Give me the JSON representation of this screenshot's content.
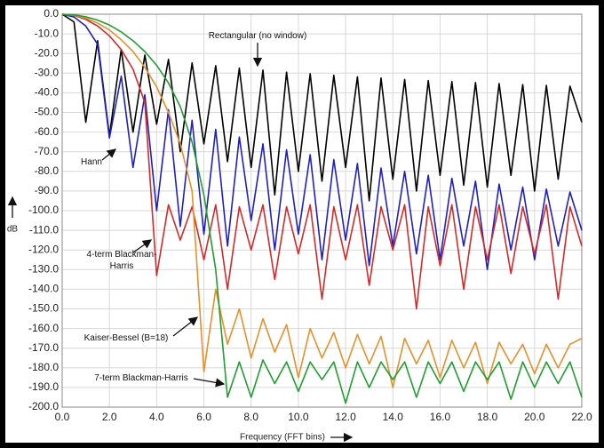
{
  "chart_data": {
    "type": "line",
    "xlabel": "Frequency (FFT bins)",
    "ylabel": "dB",
    "x": [
      0,
      0.5,
      1,
      1.5,
      2,
      2.5,
      3,
      3.5,
      4,
      4.5,
      5,
      5.5,
      6,
      6.5,
      7,
      7.5,
      8,
      8.5,
      9,
      9.5,
      10,
      10.5,
      11,
      11.5,
      12,
      12.5,
      13,
      13.5,
      14,
      14.5,
      15,
      15.5,
      16,
      16.5,
      17,
      17.5,
      18,
      18.5,
      19,
      19.5,
      20,
      20.5,
      21,
      21.5,
      22
    ],
    "series": [
      {
        "name": "Rectangular (no window)",
        "color": "#000000",
        "values": [
          0,
          -3.9,
          -55,
          -13.5,
          -62,
          -17.9,
          -60,
          -20.8,
          -56,
          -23.0,
          -70,
          -24.8,
          -66,
          -26.2,
          -75,
          -27.4,
          -78,
          -28.5,
          -92,
          -29.5,
          -80,
          -30.3,
          -85,
          -31.1,
          -78,
          -31.9,
          -95,
          -32.5,
          -84,
          -33.2,
          -90,
          -33.8,
          -82,
          -34.3,
          -87,
          -34.8,
          -88,
          -35.3,
          -82,
          -35.8,
          -90,
          -36.2,
          -84,
          -36.6,
          -55
        ]
      },
      {
        "name": "Hann",
        "color": "#2020c0",
        "values": [
          0,
          -1.4,
          -6,
          -15.3,
          -63,
          -31.5,
          -78,
          -41,
          -100,
          -48.6,
          -108,
          -54,
          -112,
          -58.6,
          -118,
          -62.5,
          -105,
          -66,
          -120,
          -69,
          -112,
          -71.5,
          -125,
          -74,
          -115,
          -76,
          -128,
          -78.3,
          -118,
          -80,
          -122,
          -82,
          -125,
          -83.5,
          -118,
          -85,
          -130,
          -86.5,
          -120,
          -88,
          -125,
          -89,
          -118,
          -90.5,
          -110
        ]
      },
      {
        "name": "4-term Blackman-Harris",
        "color": "#d42a2a",
        "values": [
          0,
          -0.6,
          -2.6,
          -6,
          -11,
          -18,
          -28,
          -45,
          -133,
          -97,
          -115,
          -98,
          -125,
          -97,
          -140,
          -98,
          -120,
          -97,
          -135,
          -98,
          -122,
          -97,
          -145,
          -98,
          -125,
          -97,
          -138,
          -98,
          -120,
          -97,
          -150,
          -98,
          -128,
          -97,
          -140,
          -98,
          -125,
          -97,
          -132,
          -98,
          -122,
          -97,
          -145,
          -98,
          -118
        ]
      },
      {
        "name": "Kaiser-Bessel (B=18)",
        "color": "#e8902a",
        "values": [
          0,
          -0.5,
          -2,
          -4.5,
          -8,
          -13,
          -19,
          -27,
          -37,
          -50,
          -66,
          -90,
          -182,
          -140,
          -168,
          -150,
          -175,
          -155,
          -172,
          -158,
          -185,
          -160,
          -175,
          -162,
          -180,
          -163,
          -178,
          -164,
          -190,
          -165,
          -178,
          -166,
          -185,
          -166,
          -180,
          -167,
          -188,
          -167,
          -178,
          -168,
          -183,
          -168,
          -180,
          -168,
          -165
        ]
      },
      {
        "name": "7-term Blackman-Harris",
        "color": "#1f9f2f",
        "values": [
          0,
          -0.3,
          -1.3,
          -3,
          -5.5,
          -9,
          -13.5,
          -19,
          -26,
          -35,
          -47,
          -65,
          -92,
          -130,
          -195,
          -177,
          -195,
          -176,
          -188,
          -177,
          -192,
          -177,
          -186,
          -177,
          -198,
          -177,
          -190,
          -177,
          -186,
          -177,
          -195,
          -177,
          -188,
          -177,
          -192,
          -177,
          -186,
          -177,
          -196,
          -177,
          -190,
          -177,
          -188,
          -177,
          -195
        ]
      }
    ],
    "xlim": [
      0,
      22
    ],
    "xticks": [
      {
        "value": 0,
        "label": "0.0"
      },
      {
        "value": 2,
        "label": "2.0"
      },
      {
        "value": 4,
        "label": "4.0"
      },
      {
        "value": 6,
        "label": "6.0"
      },
      {
        "value": 8,
        "label": "8.0"
      },
      {
        "value": 10,
        "label": "10.0"
      },
      {
        "value": 12,
        "label": "12.0"
      },
      {
        "value": 14,
        "label": "14.0"
      },
      {
        "value": 16,
        "label": "16.0"
      },
      {
        "value": 18,
        "label": "18.0"
      },
      {
        "value": 20,
        "label": "20.0"
      },
      {
        "value": 22,
        "label": "22.0"
      }
    ],
    "ylim": [
      -200,
      0
    ],
    "yticks": [
      {
        "value": 0,
        "label": "0.0"
      },
      {
        "value": -10,
        "label": "-10.0"
      },
      {
        "value": -20,
        "label": "-20.0"
      },
      {
        "value": -30,
        "label": "-30.0"
      },
      {
        "value": -40,
        "label": "-40.0"
      },
      {
        "value": -50,
        "label": "-50.0"
      },
      {
        "value": -60,
        "label": "-60.0"
      },
      {
        "value": -70,
        "label": "-70.0"
      },
      {
        "value": -80,
        "label": "-80.0"
      },
      {
        "value": -90,
        "label": "-90.0"
      },
      {
        "value": -100,
        "label": "-100.0"
      },
      {
        "value": -110,
        "label": "-110.0"
      },
      {
        "value": -120,
        "label": "-120.0"
      },
      {
        "value": -130,
        "label": "-130.0"
      },
      {
        "value": -140,
        "label": "-140.0"
      },
      {
        "value": -150,
        "label": "-150.0"
      },
      {
        "value": -160,
        "label": "-160.0"
      },
      {
        "value": -170,
        "label": "-170.0"
      },
      {
        "value": -180,
        "label": "-180.0"
      },
      {
        "value": -190,
        "label": "-190.0"
      },
      {
        "value": -200,
        "label": "-200.0"
      }
    ],
    "grid": true
  }
}
